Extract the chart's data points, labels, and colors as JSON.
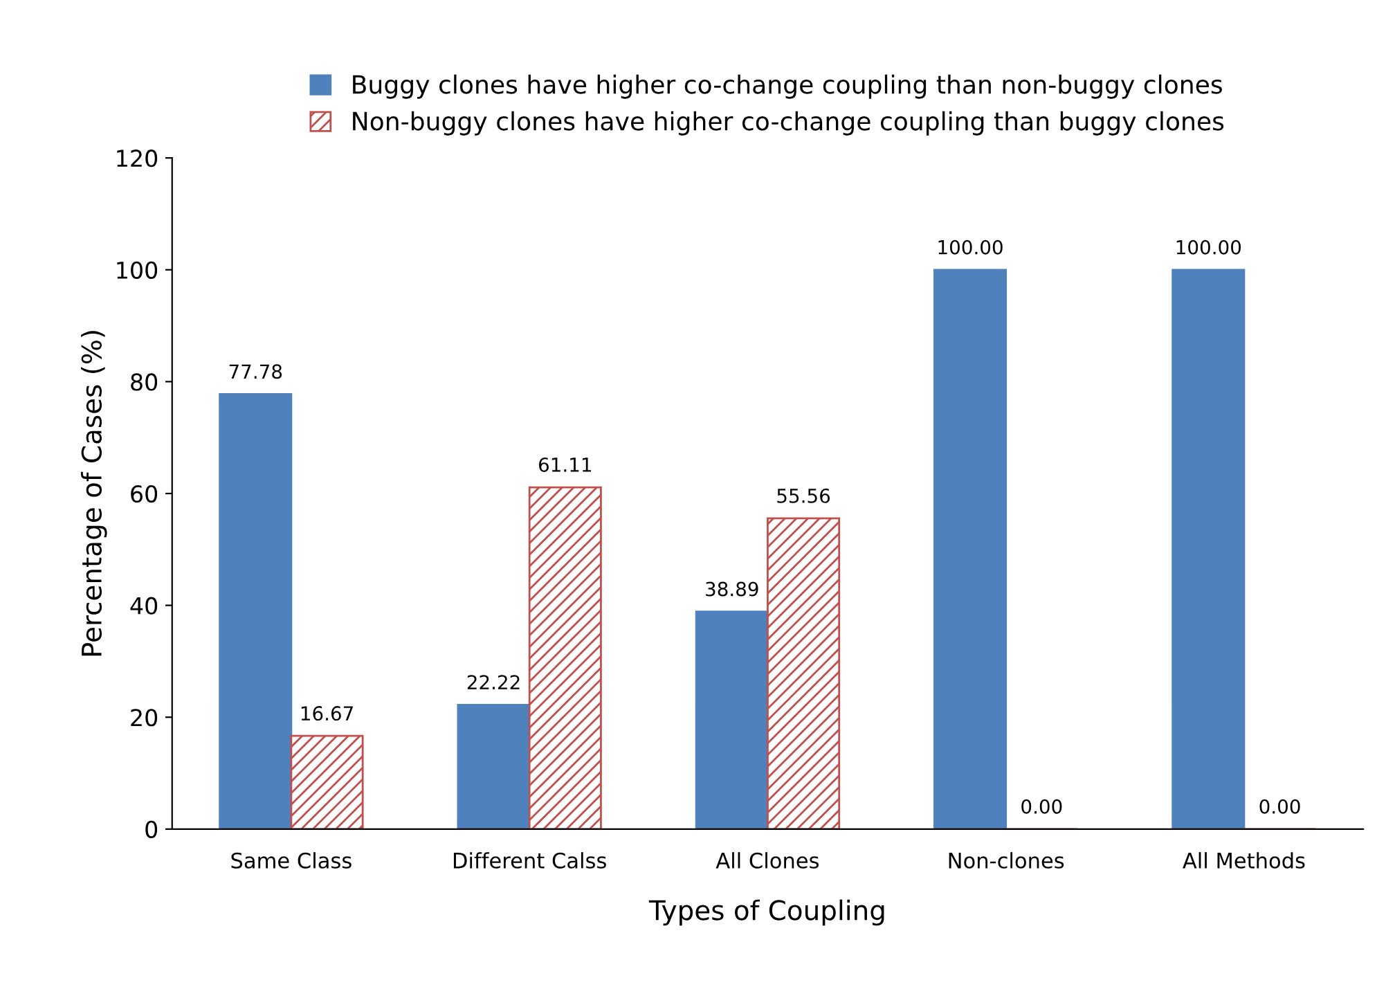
{
  "chart_data": {
    "type": "bar",
    "xlabel": "Types of Coupling",
    "ylabel": "Percentage of Cases (%)",
    "categories": [
      "Same Class",
      "Different Calss",
      "All Clones",
      "Non-clones",
      "All Methods"
    ],
    "series": [
      {
        "name": "Buggy clones have higher co-change coupling than non-buggy clones",
        "color": "#4f81bd",
        "values": [
          77.78,
          22.22,
          38.89,
          100,
          100
        ],
        "value_labels": [
          "77.78",
          "22.22",
          "38.89",
          "100.00",
          "100.00"
        ]
      },
      {
        "name": "Non-buggy clones have higher co-change coupling than buggy clones",
        "color": "#c0504d",
        "values": [
          16.67,
          61.11,
          55.56,
          0,
          0
        ],
        "value_labels": [
          "16.67",
          "61.11",
          "55.56",
          "0.00",
          "0.00"
        ]
      }
    ],
    "ylim": [
      0,
      120
    ],
    "yticks": [
      0,
      20,
      40,
      60,
      80,
      100,
      120
    ],
    "grid": false,
    "legend": "top"
  }
}
